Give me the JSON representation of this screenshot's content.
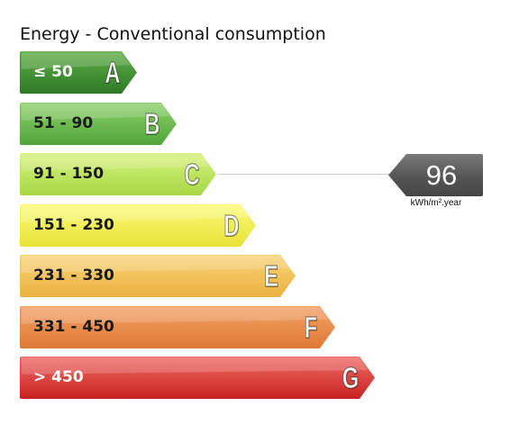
{
  "title": "Energy - Conventional consumption",
  "rating": {
    "value": "96",
    "unit": "kWh/m².year",
    "class": "C",
    "color": "#5a5a5a"
  },
  "bands": [
    {
      "range": "≤ 50",
      "letter": "A",
      "color_top": "#5fae47",
      "color_bottom": "#2f7a25",
      "text_color": "#ffffff"
    },
    {
      "range": "51 - 90",
      "letter": "B",
      "color_top": "#8fd06a",
      "color_bottom": "#4fa63a",
      "text_color": "#1a1a1a"
    },
    {
      "range": "91 - 150",
      "letter": "C",
      "color_top": "#d8f27e",
      "color_bottom": "#a6d845",
      "text_color": "#1a1a1a"
    },
    {
      "range": "151 - 230",
      "letter": "D",
      "color_top": "#fbfb7a",
      "color_bottom": "#e8e239",
      "text_color": "#1a1a1a"
    },
    {
      "range": "231 - 330",
      "letter": "E",
      "color_top": "#f8d47a",
      "color_bottom": "#ebb240",
      "text_color": "#1a1a1a"
    },
    {
      "range": "331 - 450",
      "letter": "F",
      "color_top": "#f2a066",
      "color_bottom": "#e07a35",
      "text_color": "#1a1a1a"
    },
    {
      "range": "> 450",
      "letter": "G",
      "color_top": "#ef6a66",
      "color_bottom": "#c8221f",
      "text_color": "#ffffff"
    }
  ]
}
